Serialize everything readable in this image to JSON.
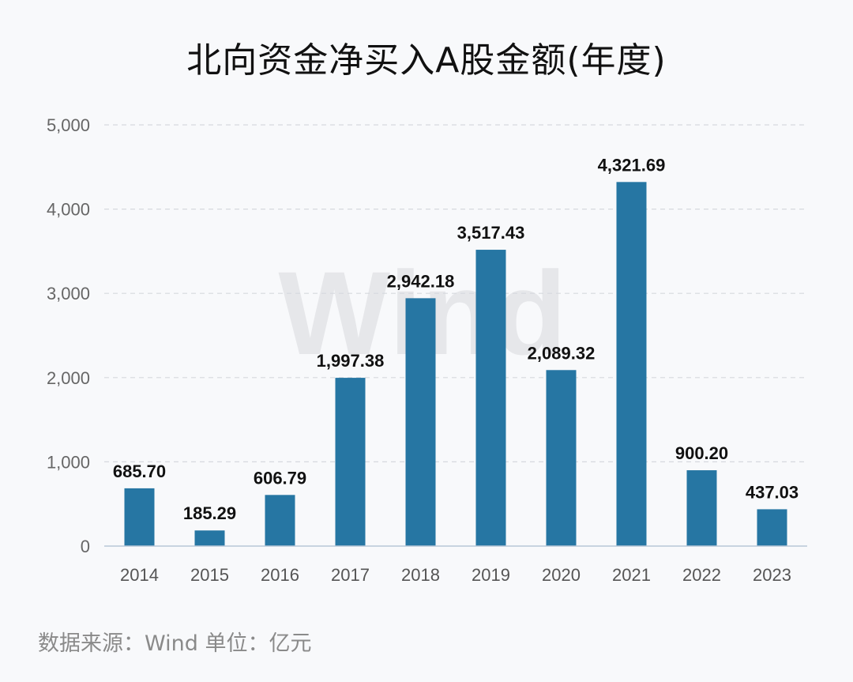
{
  "title": "北向资金净买入A股金额(年度)",
  "source_note": "数据来源：Wind  单位：亿元",
  "watermark": "Wind",
  "colors": {
    "bar": "#2676a3",
    "grid": "#d6d9de",
    "axis": "#b8c7d8",
    "background": "#f8f9fb"
  },
  "chart_data": {
    "type": "bar",
    "title": "北向资金净买入A股金额(年度)",
    "categories": [
      "2014",
      "2015",
      "2016",
      "2017",
      "2018",
      "2019",
      "2020",
      "2021",
      "2022",
      "2023"
    ],
    "values": [
      685.7,
      185.29,
      606.79,
      1997.38,
      2942.18,
      3517.43,
      2089.32,
      4321.69,
      900.2,
      437.03
    ],
    "value_labels": [
      "685.70",
      "185.29",
      "606.79",
      "1,997.38",
      "2,942.18",
      "3,517.43",
      "2,089.32",
      "4,321.69",
      "900.20",
      "437.03"
    ],
    "ylim": [
      0,
      5000
    ],
    "y_ticks": [
      0,
      1000,
      2000,
      3000,
      4000,
      5000
    ],
    "y_tick_labels": [
      "0",
      "1,000",
      "2,000",
      "3,000",
      "4,000",
      "5,000"
    ],
    "xlabel": "",
    "ylabel": "",
    "grid": true,
    "legend": "none"
  }
}
